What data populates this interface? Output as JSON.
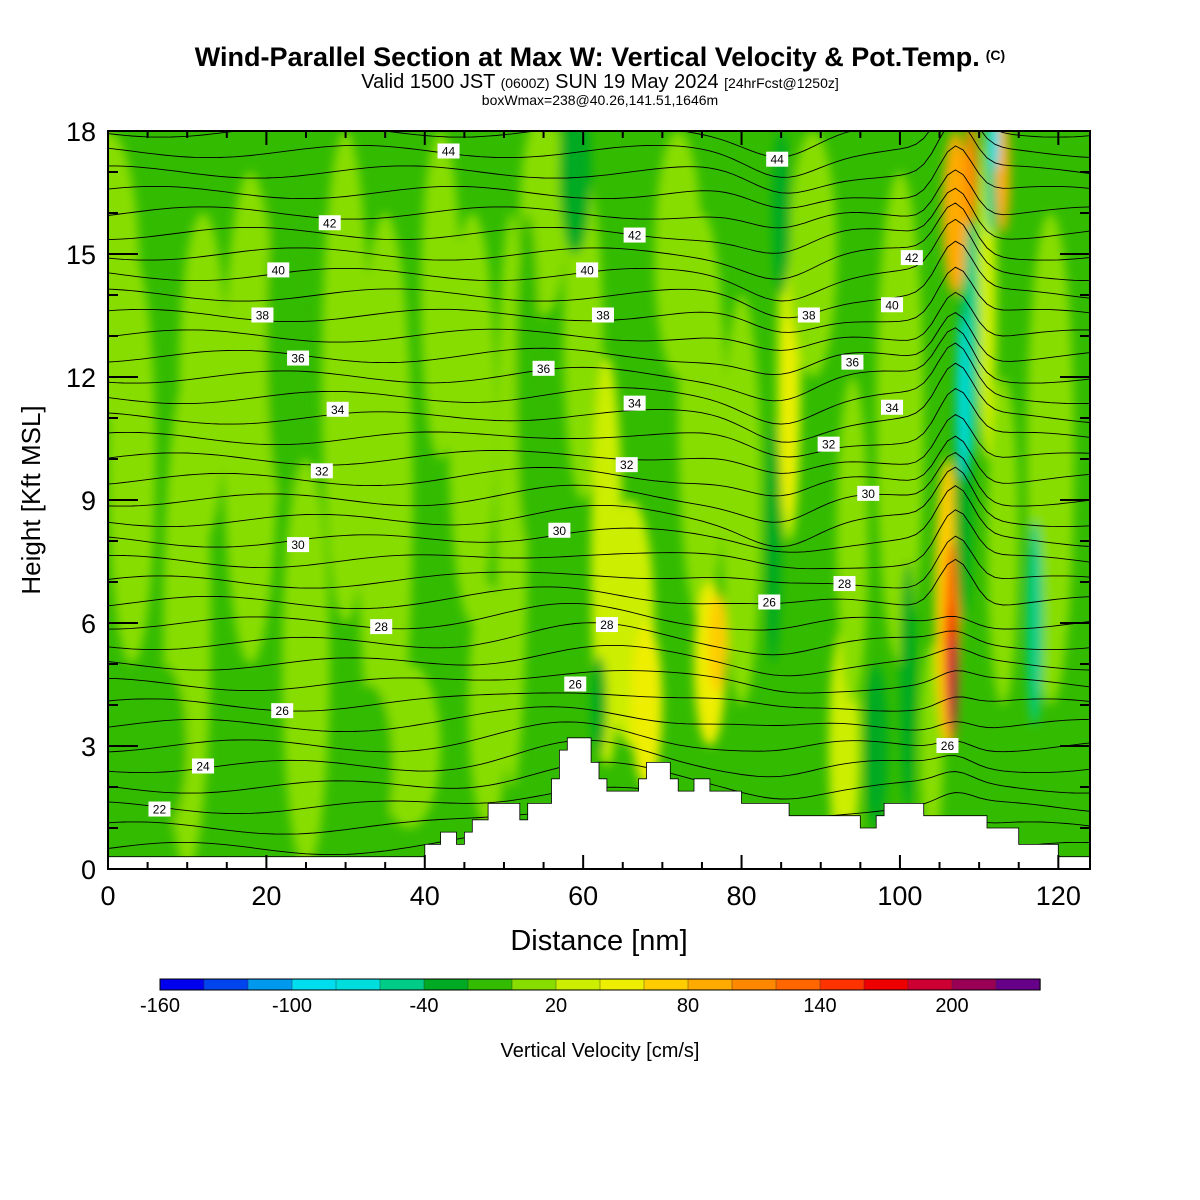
{
  "header": {
    "title": "Wind-Parallel Section at Max W: Vertical Velocity & Pot.Temp.",
    "copyright": "(C)",
    "valid_prefix": "Valid 1500 JST",
    "valid_utc": "(0600Z)",
    "valid_date": "SUN 19 May 2024",
    "forecast": "[24hrFcst@1250z]",
    "boxwmax": "boxWmax=238@40.26,141.51,1646m"
  },
  "chart_data": {
    "type": "heatmap",
    "xlabel": "Distance [nm]",
    "ylabel": "Height [Kft MSL]",
    "xlim": [
      0,
      124
    ],
    "ylim": [
      0,
      18
    ],
    "x_ticks": [
      0,
      20,
      40,
      60,
      80,
      100,
      120
    ],
    "y_ticks": [
      0,
      3,
      6,
      9,
      12,
      15,
      18
    ],
    "colorbar": {
      "title": "Vertical Velocity [cm/s]",
      "tick_labels": [
        "-160",
        "-100",
        "-40",
        "20",
        "80",
        "140",
        "200"
      ],
      "tick_values": [
        -160,
        -100,
        -40,
        20,
        80,
        140,
        200
      ],
      "levels": [
        -160,
        -140,
        -120,
        -100,
        -80,
        -60,
        -40,
        -20,
        0,
        20,
        40,
        60,
        80,
        100,
        120,
        140,
        160,
        180,
        200,
        220,
        240
      ],
      "colors": [
        "#0000ee",
        "#0044ee",
        "#0099ee",
        "#00ddee",
        "#00dddd",
        "#00cc88",
        "#00aa22",
        "#33bb00",
        "#88dd00",
        "#ccee00",
        "#eeee00",
        "#ffcc00",
        "#ffaa00",
        "#ff8800",
        "#ff6600",
        "#ff3300",
        "#ee0000",
        "#cc0033",
        "#990055",
        "#660088"
      ]
    },
    "theta_contour_labels": [
      {
        "x": 6.5,
        "y": 1.45,
        "text": "22"
      },
      {
        "x": 12,
        "y": 2.5,
        "text": "24"
      },
      {
        "x": 22,
        "y": 3.85,
        "text": "26"
      },
      {
        "x": 34.5,
        "y": 5.9,
        "text": "28"
      },
      {
        "x": 24,
        "y": 7.9,
        "text": "30"
      },
      {
        "x": 27,
        "y": 9.7,
        "text": "32"
      },
      {
        "x": 29,
        "y": 11.2,
        "text": "34"
      },
      {
        "x": 24,
        "y": 12.45,
        "text": "36"
      },
      {
        "x": 19.5,
        "y": 13.5,
        "text": "38"
      },
      {
        "x": 21.5,
        "y": 14.6,
        "text": "40"
      },
      {
        "x": 28,
        "y": 15.75,
        "text": "42"
      },
      {
        "x": 43,
        "y": 17.5,
        "text": "44"
      },
      {
        "x": 60.5,
        "y": 14.6,
        "text": "40"
      },
      {
        "x": 66.5,
        "y": 15.45,
        "text": "42"
      },
      {
        "x": 55,
        "y": 12.2,
        "text": "36"
      },
      {
        "x": 62.5,
        "y": 13.5,
        "text": "38"
      },
      {
        "x": 66.5,
        "y": 11.35,
        "text": "34"
      },
      {
        "x": 65.5,
        "y": 9.85,
        "text": "32"
      },
      {
        "x": 57,
        "y": 8.25,
        "text": "30"
      },
      {
        "x": 63,
        "y": 5.95,
        "text": "28"
      },
      {
        "x": 59,
        "y": 4.5,
        "text": "26"
      },
      {
        "x": 83.5,
        "y": 6.5,
        "text": "26"
      },
      {
        "x": 84.5,
        "y": 17.3,
        "text": "44"
      },
      {
        "x": 101.5,
        "y": 14.9,
        "text": "42"
      },
      {
        "x": 99,
        "y": 13.75,
        "text": "40"
      },
      {
        "x": 88.5,
        "y": 13.5,
        "text": "38"
      },
      {
        "x": 94,
        "y": 12.35,
        "text": "36"
      },
      {
        "x": 99,
        "y": 11.25,
        "text": "34"
      },
      {
        "x": 91,
        "y": 10.35,
        "text": "32"
      },
      {
        "x": 96,
        "y": 9.15,
        "text": "30"
      },
      {
        "x": 93,
        "y": 6.95,
        "text": "28"
      },
      {
        "x": 106,
        "y": 3.0,
        "text": "26"
      }
    ]
  }
}
